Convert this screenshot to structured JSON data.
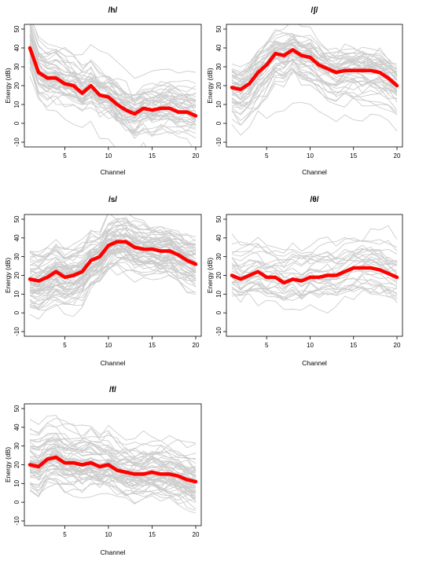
{
  "chart_data": [
    {
      "type": "line",
      "title": "/h/",
      "xlabel": "Channel",
      "ylabel": "Energy (dB)",
      "xlim": [
        1,
        20
      ],
      "ylim": [
        -10,
        50
      ],
      "x_ticks": [
        5,
        10,
        15,
        20
      ],
      "y_ticks": [
        -10,
        0,
        10,
        20,
        30,
        40,
        50
      ],
      "grid": false,
      "legend": "none",
      "background_series": {
        "color": "#cccccc",
        "count": 45,
        "description_band": "individual tokens"
      },
      "series": [
        {
          "name": "",
          "color": "#ff0000",
          "x": [
            1,
            2,
            3,
            4,
            5,
            6,
            7,
            8,
            9,
            10,
            11,
            12,
            13,
            14,
            15,
            16,
            17,
            18,
            19,
            20
          ],
          "values": [
            40,
            27,
            24,
            24,
            21,
            20,
            16,
            20,
            15,
            14,
            10,
            7,
            5,
            8,
            7,
            8,
            8,
            6,
            6,
            4
          ]
        }
      ]
    },
    {
      "type": "line",
      "title": "/ʃ/",
      "xlabel": "Channel",
      "ylabel": "Energy (dB)",
      "xlim": [
        1,
        20
      ],
      "ylim": [
        -10,
        50
      ],
      "x_ticks": [
        5,
        10,
        15,
        20
      ],
      "y_ticks": [
        -10,
        0,
        10,
        20,
        30,
        40,
        50
      ],
      "grid": false,
      "legend": "none",
      "background_series": {
        "color": "#cccccc",
        "count": 45
      },
      "series": [
        {
          "name": "",
          "color": "#ff0000",
          "x": [
            1,
            2,
            3,
            4,
            5,
            6,
            7,
            8,
            9,
            10,
            11,
            12,
            13,
            14,
            15,
            16,
            17,
            18,
            19,
            20
          ],
          "values": [
            19,
            18,
            21,
            27,
            31,
            37,
            36,
            39,
            36,
            35,
            31,
            29,
            27,
            28,
            28,
            28,
            28,
            27,
            24,
            20
          ]
        }
      ]
    },
    {
      "type": "line",
      "title": "/s/",
      "xlabel": "Channel",
      "ylabel": "Energy (dB)",
      "xlim": [
        1,
        20
      ],
      "ylim": [
        -10,
        50
      ],
      "x_ticks": [
        5,
        10,
        15,
        20
      ],
      "y_ticks": [
        -10,
        0,
        10,
        20,
        30,
        40,
        50
      ],
      "grid": false,
      "legend": "none",
      "background_series": {
        "color": "#cccccc",
        "count": 60
      },
      "series": [
        {
          "name": "",
          "color": "#ff0000",
          "x": [
            1,
            2,
            3,
            4,
            5,
            6,
            7,
            8,
            9,
            10,
            11,
            12,
            13,
            14,
            15,
            16,
            17,
            18,
            19,
            20
          ],
          "values": [
            18,
            17,
            19,
            22,
            19,
            20,
            22,
            28,
            30,
            36,
            38,
            38,
            35,
            34,
            34,
            33,
            33,
            31,
            28,
            26
          ]
        }
      ]
    },
    {
      "type": "line",
      "title": "/θ/",
      "xlabel": "Channel",
      "ylabel": "Energy (dB)",
      "xlim": [
        1,
        20
      ],
      "ylim": [
        -10,
        50
      ],
      "x_ticks": [
        5,
        10,
        15,
        20
      ],
      "y_ticks": [
        -10,
        0,
        10,
        20,
        30,
        40,
        50
      ],
      "grid": false,
      "legend": "none",
      "background_series": {
        "color": "#cccccc",
        "count": 30
      },
      "series": [
        {
          "name": "",
          "color": "#ff0000",
          "x": [
            1,
            2,
            3,
            4,
            5,
            6,
            7,
            8,
            9,
            10,
            11,
            12,
            13,
            14,
            15,
            16,
            17,
            18,
            19,
            20
          ],
          "values": [
            20,
            18,
            20,
            22,
            19,
            19,
            16,
            18,
            17,
            19,
            19,
            20,
            20,
            22,
            24,
            24,
            24,
            23,
            21,
            19
          ]
        }
      ]
    },
    {
      "type": "line",
      "title": "/f/",
      "xlabel": "Channel",
      "ylabel": "Energy (dB)",
      "xlim": [
        1,
        20
      ],
      "ylim": [
        -10,
        50
      ],
      "x_ticks": [
        5,
        10,
        15,
        20
      ],
      "y_ticks": [
        -10,
        0,
        10,
        20,
        30,
        40,
        50
      ],
      "grid": false,
      "legend": "none",
      "background_series": {
        "color": "#cccccc",
        "count": 55
      },
      "series": [
        {
          "name": "",
          "color": "#ff0000",
          "x": [
            1,
            2,
            3,
            4,
            5,
            6,
            7,
            8,
            9,
            10,
            11,
            12,
            13,
            14,
            15,
            16,
            17,
            18,
            19,
            20
          ],
          "values": [
            20,
            19,
            23,
            24,
            21,
            21,
            20,
            21,
            19,
            20,
            17,
            16,
            15,
            15,
            16,
            15,
            15,
            14,
            12,
            11
          ]
        }
      ]
    }
  ]
}
